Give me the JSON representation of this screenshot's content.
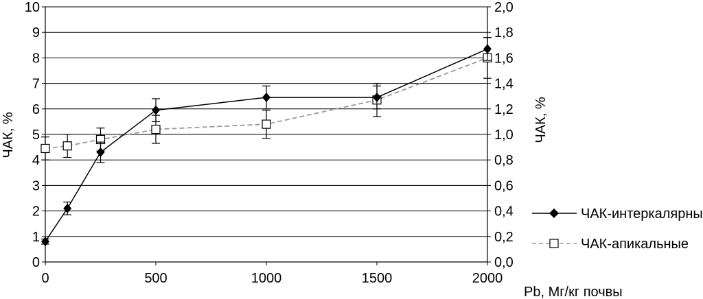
{
  "chart_data": {
    "type": "line",
    "x_label": "Pb, Мг/кг почвы",
    "y_left_label": "ЧАК, %",
    "y_right_label": "ЧАК, %",
    "x_ticks": [
      "0",
      "500",
      "1000",
      "1500",
      "2000"
    ],
    "y_left_ticks": [
      "0",
      "1",
      "2",
      "3",
      "4",
      "5",
      "6",
      "7",
      "8",
      "9",
      "10"
    ],
    "y_right_ticks": [
      "0,0",
      "0,2",
      "0,4",
      "0,6",
      "0,8",
      "1,0",
      "1,2",
      "1,4",
      "1,6",
      "1,8",
      "2,0"
    ],
    "xlim": [
      0,
      2000
    ],
    "ylim_left": [
      0,
      10
    ],
    "ylim_right": [
      0,
      2
    ],
    "grid": true,
    "legend_position": "right",
    "series": [
      {
        "name": "ЧАК-интеркалярные",
        "axis": "left",
        "style": "solid",
        "marker": "diamond",
        "color": "#000000",
        "x": [
          0,
          100,
          250,
          500,
          1000,
          1500,
          2000
        ],
        "y": [
          0.8,
          2.1,
          4.3,
          5.95,
          6.45,
          6.45,
          8.35
        ],
        "err": [
          0.1,
          0.25,
          0.4,
          0.45,
          0.45,
          0.45,
          0.45
        ]
      },
      {
        "name": "ЧАК-апикальные",
        "axis": "right",
        "style": "dashed",
        "marker": "square-open",
        "color": "#999999",
        "x": [
          0,
          100,
          250,
          500,
          1000,
          1500,
          2000
        ],
        "y": [
          0.89,
          0.91,
          0.96,
          1.04,
          1.08,
          1.27,
          1.6
        ],
        "err": [
          0.09,
          0.09,
          0.09,
          0.11,
          0.11,
          0.13,
          0.16
        ]
      }
    ]
  }
}
